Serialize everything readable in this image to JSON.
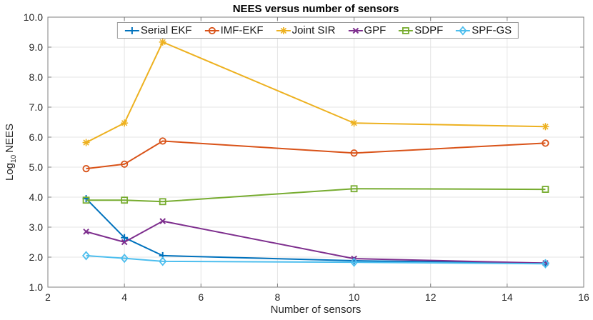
{
  "figure": {
    "title": "NEES versus number of sensors",
    "xlabel": "Number of sensors",
    "ylabel_parts": {
      "prefix": "Log",
      "sub": "10",
      "suffix": "NEES"
    }
  },
  "chart_data": {
    "type": "line",
    "title": "NEES versus number of sensors",
    "xlabel": "Number of sensors",
    "ylabel": "Log_10 NEES",
    "x": [
      3,
      4,
      5,
      10,
      15
    ],
    "series": [
      {
        "name": "Serial EKF",
        "color": "#0072BD",
        "marker": "plus",
        "values": [
          3.95,
          2.65,
          2.05,
          1.88,
          1.8
        ]
      },
      {
        "name": "IMF-EKF",
        "color": "#D95319",
        "marker": "circle",
        "values": [
          4.95,
          5.1,
          5.87,
          5.47,
          5.8
        ]
      },
      {
        "name": "Joint SIR",
        "color": "#EDB120",
        "marker": "asterisk",
        "values": [
          5.82,
          6.47,
          9.17,
          6.47,
          6.35
        ]
      },
      {
        "name": "GPF",
        "color": "#7E2F8E",
        "marker": "x",
        "values": [
          2.85,
          2.5,
          3.2,
          1.95,
          1.8
        ]
      },
      {
        "name": "SDPF",
        "color": "#77AC30",
        "marker": "square",
        "values": [
          3.9,
          3.9,
          3.85,
          4.28,
          4.26
        ]
      },
      {
        "name": "SPF-GS",
        "color": "#4DBEEE",
        "marker": "diamond",
        "values": [
          2.05,
          1.96,
          1.86,
          1.83,
          1.78
        ]
      }
    ],
    "xlim": [
      2,
      16
    ],
    "ylim": [
      1,
      10
    ],
    "xticks": [
      2,
      4,
      6,
      8,
      10,
      12,
      14,
      16
    ],
    "xtick_labels": [
      "2",
      "4",
      "6",
      "8",
      "10",
      "12",
      "14",
      "16"
    ],
    "yticks": [
      1,
      2,
      3,
      4,
      5,
      6,
      7,
      8,
      9,
      10
    ],
    "ytick_labels": [
      "1.0",
      "2.0",
      "3.0",
      "4.0",
      "5.0",
      "6.0",
      "7.0",
      "8.0",
      "9.0",
      "10.0"
    ],
    "grid": true,
    "legend_position": "top-center-inside",
    "style": {
      "grid_color": "#e4e4e4",
      "box_color": "#808080",
      "tick_label_color": "#262626"
    }
  }
}
